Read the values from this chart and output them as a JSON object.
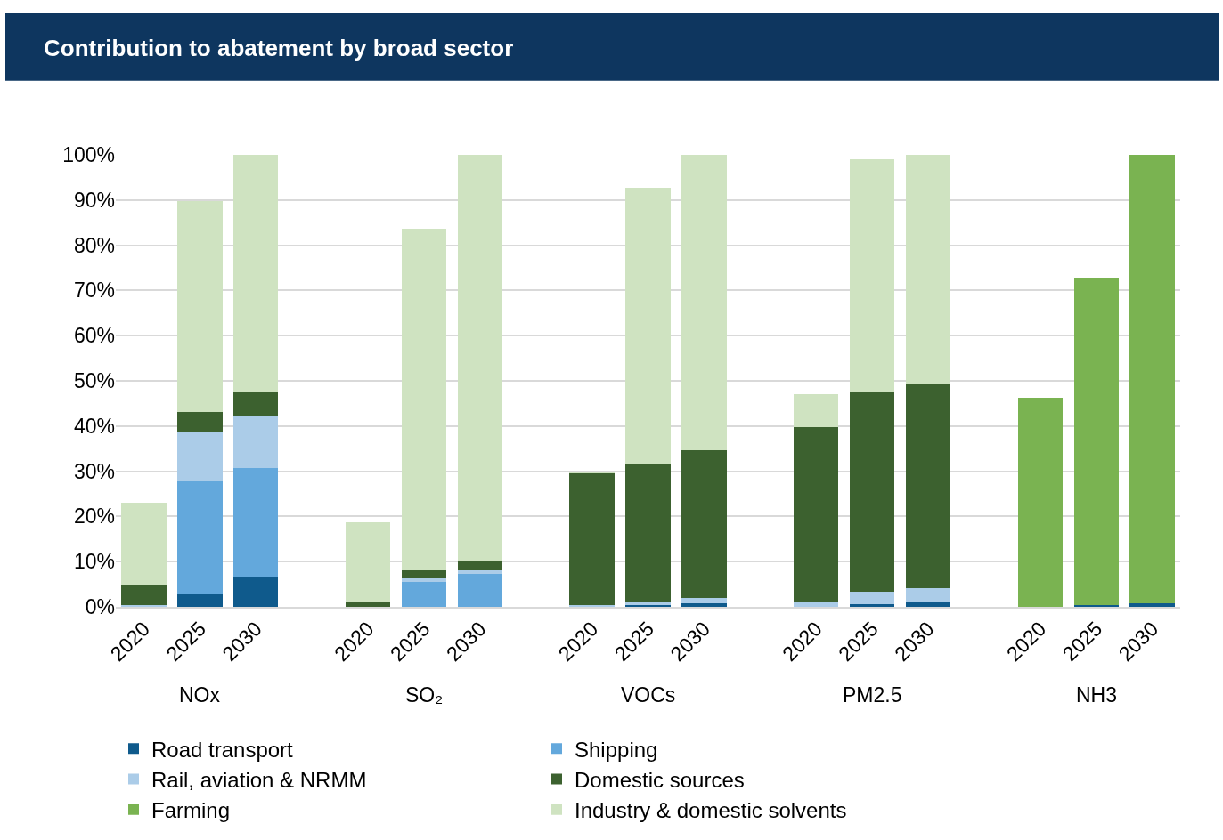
{
  "chart_data": {
    "type": "bar",
    "title": "Contribution to abatement by broad sector",
    "stacked": true,
    "categories": [
      "2020",
      "2025",
      "2030",
      null,
      "2020",
      "2025",
      "2030",
      null,
      "2020",
      "2025",
      "2030",
      null,
      "2020",
      "2025",
      "2030",
      null,
      "2020",
      "2025",
      "2030"
    ],
    "annotations": [
      "NOx",
      "SO₂",
      "VOCs",
      "PM2.5",
      "NH3"
    ],
    "series": [
      {
        "name": "Road transport",
        "color": "#0f5a8c",
        "values": [
          0,
          2.8,
          6.6,
          null,
          0,
          0,
          0,
          null,
          0,
          0.3,
          0.7,
          null,
          0,
          0.5,
          1.1,
          null,
          0,
          0.3,
          0.7
        ]
      },
      {
        "name": "Shipping",
        "color": "#63a8dc",
        "values": [
          0,
          24.9,
          24.1,
          null,
          0,
          5.5,
          7.2,
          null,
          0,
          0,
          0,
          null,
          0,
          0,
          0,
          null,
          0,
          0,
          0
        ]
      },
      {
        "name": "Rail, aviation & NRMM",
        "color": "#abcce8",
        "values": [
          0.3,
          10.9,
          11.7,
          null,
          0,
          0.8,
          0.8,
          null,
          0.3,
          0.8,
          1.3,
          null,
          1.1,
          2.8,
          3.0,
          null,
          0,
          0,
          0
        ]
      },
      {
        "name": "Domestic sources",
        "color": "#3c612f",
        "values": [
          4.6,
          4.6,
          5.1,
          null,
          1.1,
          1.7,
          2.1,
          null,
          29.2,
          30.5,
          32.6,
          null,
          38.7,
          44.3,
          45.2,
          null,
          0,
          0,
          0
        ]
      },
      {
        "name": "Farming",
        "color": "#7ab351",
        "values": [
          0,
          0,
          0,
          null,
          0,
          0,
          0,
          null,
          0,
          0,
          0,
          null,
          0,
          0,
          0,
          null,
          46.3,
          72.6,
          99.3
        ]
      },
      {
        "name": "Industry & domestic solvents",
        "color": "#cfe3c1",
        "values": [
          18.2,
          46.5,
          52.5,
          null,
          17.7,
          75.7,
          89.9,
          null,
          0.4,
          61.1,
          65.4,
          null,
          7.3,
          51.5,
          50.7,
          null,
          0,
          0,
          0
        ]
      }
    ],
    "ylim": [
      0,
      100
    ],
    "yticks": [
      {
        "value": 0,
        "label": "0%"
      },
      {
        "value": 10,
        "label": "10%"
      },
      {
        "value": 20,
        "label": "20%"
      },
      {
        "value": 30,
        "label": "30%"
      },
      {
        "value": 40,
        "label": "40%"
      },
      {
        "value": 50,
        "label": "50%"
      },
      {
        "value": 60,
        "label": "60%"
      },
      {
        "value": 70,
        "label": "70%"
      },
      {
        "value": 80,
        "label": "80%"
      },
      {
        "value": 90,
        "label": "90%"
      },
      {
        "value": 100,
        "label": "100%"
      }
    ],
    "grid": "y",
    "legend": "bottom"
  }
}
